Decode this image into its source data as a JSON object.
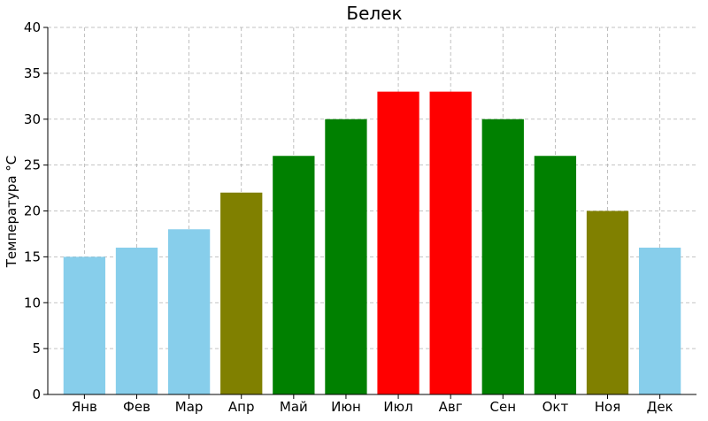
{
  "chart_data": {
    "type": "bar",
    "title": "Белек",
    "xlabel": "",
    "ylabel": "Температура °C",
    "ylim": [
      0,
      40
    ],
    "yticks": [
      0,
      5,
      10,
      15,
      20,
      25,
      30,
      35,
      40
    ],
    "grid": true,
    "categories": [
      "Янв",
      "Фев",
      "Мар",
      "Апр",
      "Май",
      "Июн",
      "Июл",
      "Авг",
      "Сен",
      "Окт",
      "Ноя",
      "Дек"
    ],
    "values": [
      15,
      16,
      18,
      22,
      26,
      30,
      33,
      33,
      30,
      26,
      20,
      16
    ],
    "colors": [
      "#87ceeb",
      "#87ceeb",
      "#87ceeb",
      "#808000",
      "#008000",
      "#008000",
      "#ff0000",
      "#ff0000",
      "#008000",
      "#008000",
      "#808000",
      "#87ceeb"
    ]
  }
}
